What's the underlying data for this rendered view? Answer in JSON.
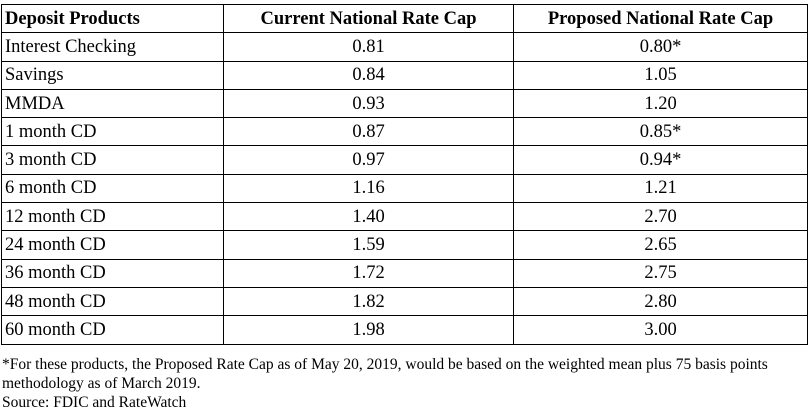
{
  "table": {
    "headers": [
      "Deposit Products",
      "Current National Rate Cap",
      "Proposed National Rate Cap"
    ],
    "rows": [
      [
        "Interest Checking",
        "0.81",
        "0.80*"
      ],
      [
        "Savings",
        "0.84",
        "1.05"
      ],
      [
        "MMDA",
        "0.93",
        "1.20"
      ],
      [
        "1 month CD",
        "0.87",
        "0.85*"
      ],
      [
        "3 month CD",
        "0.97",
        "0.94*"
      ],
      [
        "6 month CD",
        "1.16",
        "1.21"
      ],
      [
        "12 month CD",
        "1.40",
        "2.70"
      ],
      [
        "24 month CD",
        "1.59",
        "2.65"
      ],
      [
        "36 month CD",
        "1.72",
        "2.75"
      ],
      [
        "48 month CD",
        "1.82",
        "2.80"
      ],
      [
        "60 month CD",
        "1.98",
        "3.00"
      ]
    ]
  },
  "footnote": "*For these products, the Proposed Rate Cap as of May 20, 2019, would be based on the weighted mean plus 75 basis points methodology as of March 2019.",
  "source": "Source: FDIC and RateWatch"
}
